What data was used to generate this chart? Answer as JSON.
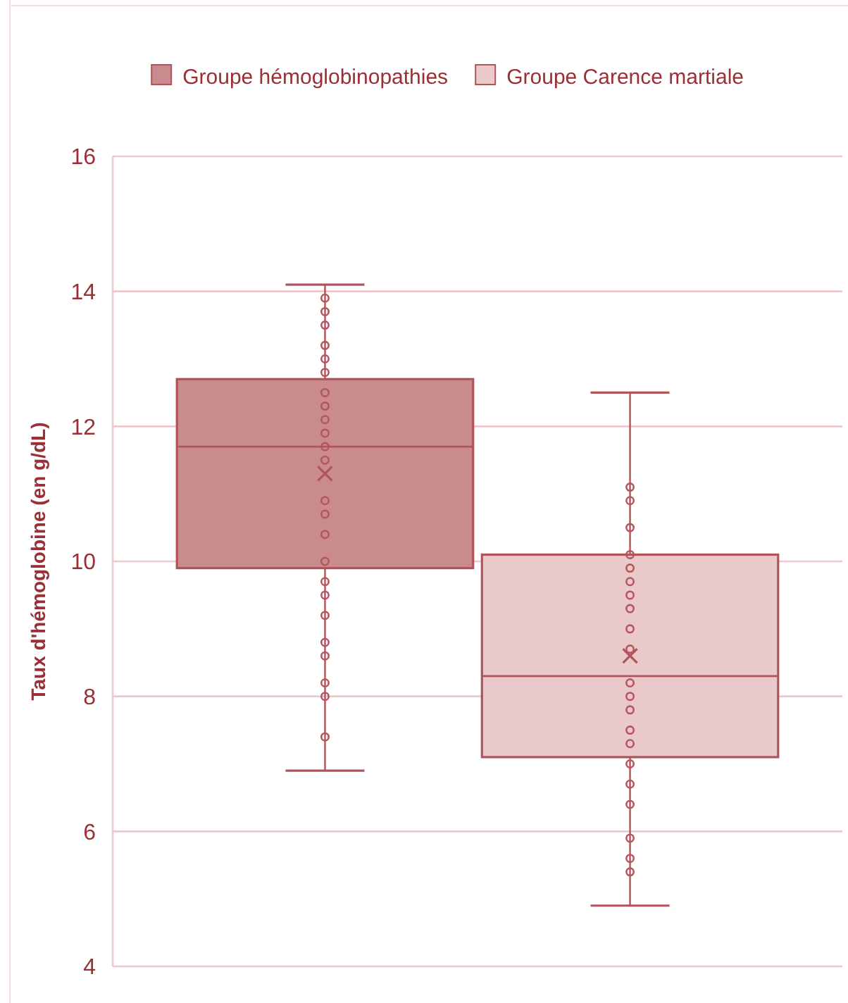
{
  "chart_data": {
    "type": "box",
    "ylabel": "Taux d'hémoglobine (en g/dL)",
    "categories": [
      null
    ],
    "ylim": [
      4,
      16
    ],
    "yticks": [
      4,
      6,
      8,
      10,
      12,
      14,
      16
    ],
    "grid": "y",
    "legend": "top",
    "marker": "circle",
    "series": [
      {
        "name": "Groupe hémoglobinopathies",
        "color": "#c98b8e",
        "boxes": [
          {
            "low": 6.9,
            "q1": 9.9,
            "median": 11.7,
            "q3": 12.7,
            "high": 14.1,
            "mean": 11.3
          }
        ]
      },
      {
        "name": "Groupe Carence martiale",
        "color": "#e9c9ca",
        "boxes": [
          {
            "low": 4.9,
            "q1": 7.1,
            "median": 8.3,
            "q3": 10.1,
            "high": 12.5,
            "mean": 8.6
          }
        ]
      },
      {
        "type": "scatter",
        "color": "#b5565c",
        "x": [
          null,
          null,
          null,
          null,
          null,
          null,
          null,
          null,
          null,
          null,
          null,
          null,
          null,
          null,
          null,
          null,
          null,
          null,
          null,
          null,
          null,
          null,
          null,
          null
        ],
        "values": [
          13.9,
          13.7,
          13.5,
          13.2,
          13.0,
          12.8,
          12.5,
          12.3,
          12.1,
          11.9,
          11.7,
          11.5,
          10.9,
          10.7,
          10.4,
          10.0,
          9.7,
          9.5,
          9.2,
          8.8,
          8.6,
          8.2,
          8.0,
          7.4
        ]
      },
      {
        "type": "scatter",
        "color": "#b5565c",
        "x": [
          null,
          null,
          null,
          null,
          null,
          null,
          null,
          null,
          null,
          null,
          null,
          null,
          null,
          null,
          null,
          null,
          null,
          null,
          null,
          null,
          null
        ],
        "values": [
          11.1,
          10.9,
          10.5,
          10.1,
          9.9,
          9.7,
          9.5,
          9.3,
          9.0,
          8.7,
          8.2,
          8.0,
          7.8,
          7.5,
          7.3,
          7.0,
          6.7,
          6.4,
          5.9,
          5.6,
          5.4
        ]
      }
    ]
  }
}
